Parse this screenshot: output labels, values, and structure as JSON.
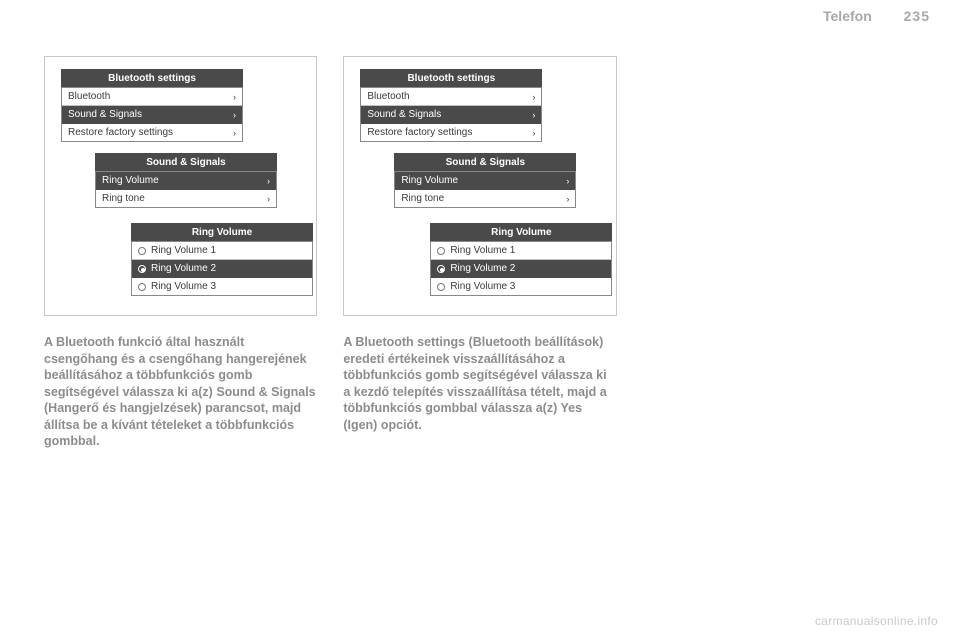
{
  "header": {
    "section": "Telefon",
    "page": "235"
  },
  "panels": {
    "bluetooth": {
      "title": "Bluetooth settings",
      "rows": [
        {
          "label": "Bluetooth",
          "chev": true,
          "selected": false
        },
        {
          "label": "Sound & Signals",
          "chev": true,
          "selected": true
        },
        {
          "label": "Restore factory settings",
          "chev": true,
          "selected": false
        }
      ]
    },
    "sound": {
      "title": "Sound & Signals",
      "rows": [
        {
          "label": "Ring Volume",
          "chev": true,
          "selected": true
        },
        {
          "label": "Ring tone",
          "chev": true,
          "selected": false
        }
      ]
    },
    "ring": {
      "title": "Ring Volume",
      "rows": [
        {
          "label": "Ring Volume 1",
          "radio": true,
          "selected": false
        },
        {
          "label": "Ring Volume 2",
          "radio": true,
          "selected": true
        },
        {
          "label": "Ring Volume 3",
          "radio": true,
          "selected": false
        }
      ]
    }
  },
  "para1": "A Bluetooth funkció által használt csengőhang és a csengőhang hangerejének beállításához a többfunkciós gomb segítségével válassza ki a(z) Sound & Signals (Hangerő és hangjelzések) parancsot, majd állítsa be a kívánt tételeket a többfunkciós gombbal.",
  "para2": "A Bluetooth settings (Bluetooth beállítások) eredeti értékeinek visszaállításához a többfunkciós gomb segítségével válassza ki a kezdő telepítés visszaállítása tételt, majd a többfunkciós gombbal válassza a(z) Yes (Igen) opciót.",
  "watermark": "carmanualsonline.info"
}
